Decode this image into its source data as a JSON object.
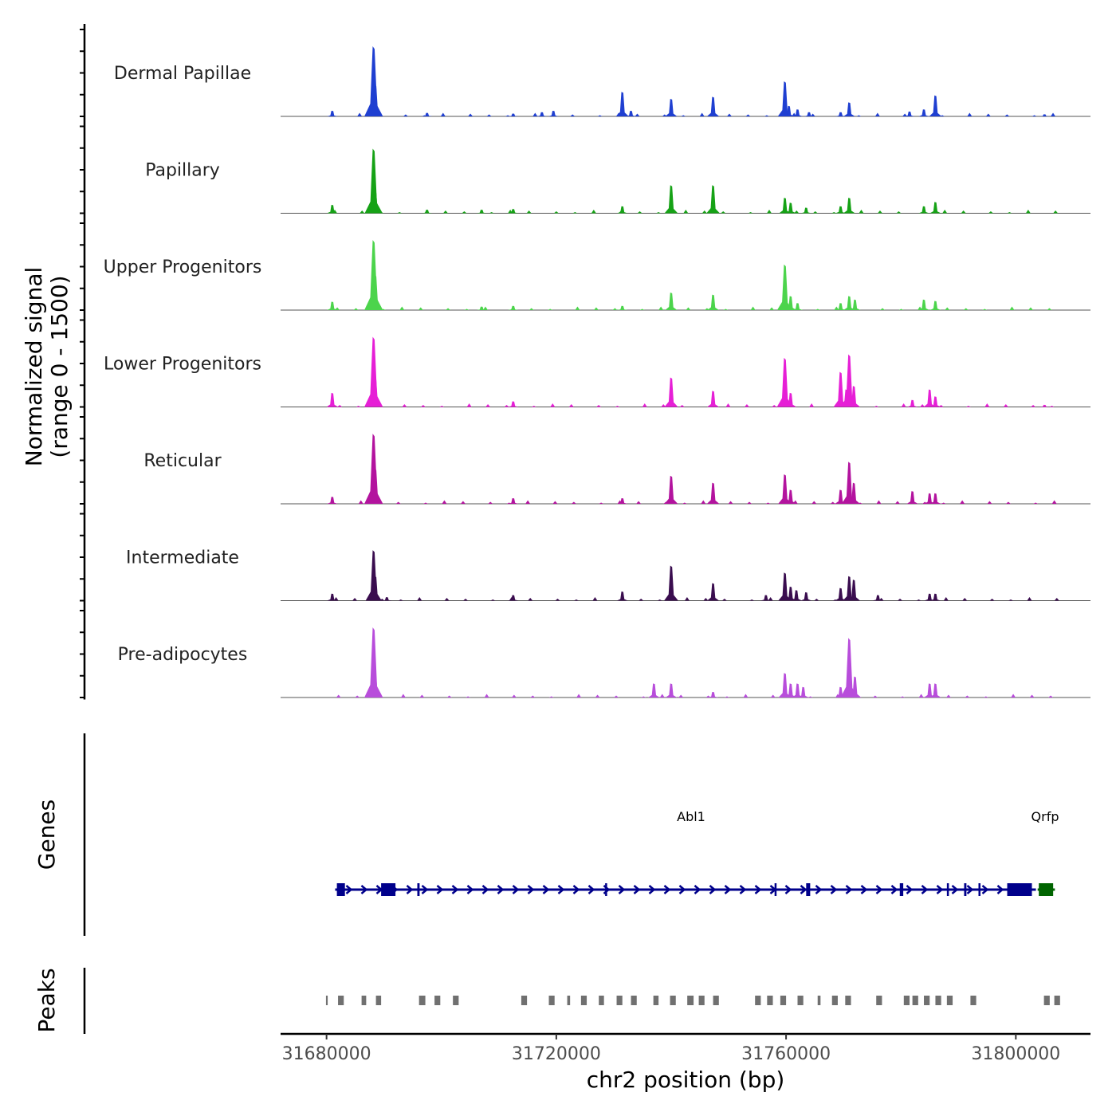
{
  "chart_data": {
    "type": "area",
    "title": "",
    "xlabel": "chr2 position (bp)",
    "ylabel_line1": "Normalized signal",
    "ylabel_line2": "(range 0 - 1500)",
    "y_range": [
      0,
      1500
    ],
    "x_range": [
      31672000,
      31813000
    ],
    "x_ticks": [
      31680000,
      31720000,
      31760000,
      31800000
    ],
    "x_tick_labels": [
      "31680000",
      "31720000",
      "31760000",
      "31800000"
    ],
    "tracks": [
      {
        "name": "Dermal Papillae",
        "color": "#1f3fd1",
        "peaks": [
          [
            31681000,
            0.08
          ],
          [
            31688200,
            1.0
          ],
          [
            31688500,
            0.45
          ],
          [
            31697500,
            0.05
          ],
          [
            31712500,
            0.04
          ],
          [
            31717500,
            0.06
          ],
          [
            31719500,
            0.08
          ],
          [
            31731500,
            0.35
          ],
          [
            31733000,
            0.08
          ],
          [
            31740000,
            0.25
          ],
          [
            31747300,
            0.28
          ],
          [
            31759800,
            0.5
          ],
          [
            31760500,
            0.15
          ],
          [
            31762000,
            0.1
          ],
          [
            31764000,
            0.06
          ],
          [
            31769500,
            0.06
          ],
          [
            31771000,
            0.2
          ],
          [
            31781500,
            0.07
          ],
          [
            31784000,
            0.1
          ],
          [
            31786000,
            0.3
          ],
          [
            31805000,
            0.03
          ]
        ]
      },
      {
        "name": "Papillary",
        "color": "#16a216",
        "peaks": [
          [
            31681000,
            0.12
          ],
          [
            31688200,
            0.92
          ],
          [
            31688500,
            0.3
          ],
          [
            31697500,
            0.05
          ],
          [
            31707000,
            0.05
          ],
          [
            31712500,
            0.06
          ],
          [
            31731500,
            0.1
          ],
          [
            31740000,
            0.4
          ],
          [
            31747300,
            0.4
          ],
          [
            31759800,
            0.22
          ],
          [
            31760800,
            0.15
          ],
          [
            31763500,
            0.08
          ],
          [
            31769500,
            0.1
          ],
          [
            31771000,
            0.22
          ],
          [
            31784000,
            0.1
          ],
          [
            31786000,
            0.16
          ]
        ]
      },
      {
        "name": "Upper Progenitors",
        "color": "#4cd44c",
        "peaks": [
          [
            31681000,
            0.12
          ],
          [
            31688200,
            1.0
          ],
          [
            31688500,
            0.5
          ],
          [
            31707000,
            0.05
          ],
          [
            31712500,
            0.06
          ],
          [
            31731500,
            0.06
          ],
          [
            31740000,
            0.25
          ],
          [
            31747300,
            0.22
          ],
          [
            31759800,
            0.65
          ],
          [
            31760800,
            0.2
          ],
          [
            31762000,
            0.1
          ],
          [
            31769500,
            0.1
          ],
          [
            31771000,
            0.2
          ],
          [
            31772000,
            0.15
          ],
          [
            31784000,
            0.15
          ],
          [
            31786000,
            0.13
          ]
        ]
      },
      {
        "name": "Lower Progenitors",
        "color": "#e61fd6",
        "peaks": [
          [
            31681000,
            0.2
          ],
          [
            31688200,
            1.0
          ],
          [
            31688500,
            0.4
          ],
          [
            31712500,
            0.08
          ],
          [
            31740000,
            0.42
          ],
          [
            31747300,
            0.23
          ],
          [
            31759800,
            0.7
          ],
          [
            31760800,
            0.2
          ],
          [
            31769500,
            0.5
          ],
          [
            31770500,
            0.25
          ],
          [
            31771000,
            0.75
          ],
          [
            31771800,
            0.3
          ],
          [
            31782000,
            0.1
          ],
          [
            31785000,
            0.25
          ],
          [
            31786000,
            0.15
          ],
          [
            31805000,
            0.03
          ]
        ]
      },
      {
        "name": "Reticular",
        "color": "#b3139e",
        "peaks": [
          [
            31681000,
            0.1
          ],
          [
            31688200,
            1.0
          ],
          [
            31688500,
            0.5
          ],
          [
            31712500,
            0.08
          ],
          [
            31731500,
            0.08
          ],
          [
            31740000,
            0.4
          ],
          [
            31747300,
            0.3
          ],
          [
            31759800,
            0.42
          ],
          [
            31760800,
            0.2
          ],
          [
            31769500,
            0.2
          ],
          [
            31771000,
            0.6
          ],
          [
            31771800,
            0.3
          ],
          [
            31782000,
            0.18
          ],
          [
            31785000,
            0.15
          ],
          [
            31786000,
            0.15
          ]
        ]
      },
      {
        "name": "Intermediate",
        "color": "#3a0d4f",
        "peaks": [
          [
            31681000,
            0.1
          ],
          [
            31688200,
            0.72
          ],
          [
            31688500,
            0.35
          ],
          [
            31690500,
            0.05
          ],
          [
            31712500,
            0.08
          ],
          [
            31731500,
            0.13
          ],
          [
            31740000,
            0.5
          ],
          [
            31747300,
            0.25
          ],
          [
            31756500,
            0.08
          ],
          [
            31759800,
            0.4
          ],
          [
            31760800,
            0.2
          ],
          [
            31761800,
            0.15
          ],
          [
            31763500,
            0.12
          ],
          [
            31769500,
            0.18
          ],
          [
            31771000,
            0.35
          ],
          [
            31771800,
            0.3
          ],
          [
            31776000,
            0.08
          ],
          [
            31785000,
            0.1
          ],
          [
            31786000,
            0.1
          ]
        ]
      },
      {
        "name": "Pre-adipocytes",
        "color": "#b84ddb",
        "peaks": [
          [
            31688200,
            1.0
          ],
          [
            31688500,
            0.3
          ],
          [
            31737000,
            0.2
          ],
          [
            31740000,
            0.2
          ],
          [
            31747300,
            0.08
          ],
          [
            31759800,
            0.35
          ],
          [
            31760800,
            0.2
          ],
          [
            31762000,
            0.2
          ],
          [
            31763000,
            0.15
          ],
          [
            31769500,
            0.15
          ],
          [
            31771000,
            0.85
          ],
          [
            31772000,
            0.3
          ],
          [
            31785000,
            0.2
          ],
          [
            31786000,
            0.2
          ]
        ]
      }
    ],
    "genes": {
      "title": "Genes",
      "items": [
        {
          "name": "Abl1",
          "start": 31681500,
          "end": 31803500,
          "strand": "+",
          "color": "#00008b",
          "exons": [
            [
              31681800,
              31683200
            ],
            [
              31689500,
              31692000
            ],
            [
              31695800,
              31696200
            ],
            [
              31728500,
              31728800
            ],
            [
              31758000,
              31758300
            ],
            [
              31763500,
              31764200
            ],
            [
              31779800,
              31780400
            ],
            [
              31788000,
              31788300
            ],
            [
              31791000,
              31791400
            ],
            [
              31793500,
              31793800
            ],
            [
              31798500,
              31802800
            ]
          ]
        },
        {
          "name": "Qrfp",
          "start": 31803800,
          "end": 31806800,
          "strand": "-",
          "color": "#006400",
          "exons": [
            [
              31804000,
              31806500
            ]
          ]
        }
      ]
    },
    "peaks_track": {
      "title": "Peaks",
      "color": "#707070",
      "regions": [
        [
          31679900,
          31680200
        ],
        [
          31682000,
          31683000
        ],
        [
          31686100,
          31686900
        ],
        [
          31688600,
          31689500
        ],
        [
          31696100,
          31697200
        ],
        [
          31698800,
          31699800
        ],
        [
          31702000,
          31703000
        ],
        [
          31713900,
          31714900
        ],
        [
          31718700,
          31719700
        ],
        [
          31721900,
          31722400
        ],
        [
          31724300,
          31725300
        ],
        [
          31727400,
          31728300
        ],
        [
          31730500,
          31731500
        ],
        [
          31733000,
          31734000
        ],
        [
          31736900,
          31737800
        ],
        [
          31739800,
          31740800
        ],
        [
          31742800,
          31743900
        ],
        [
          31744800,
          31745800
        ],
        [
          31747300,
          31748300
        ],
        [
          31754600,
          31755600
        ],
        [
          31756700,
          31757700
        ],
        [
          31759000,
          31760000
        ],
        [
          31762000,
          31763000
        ],
        [
          31765500,
          31766000
        ],
        [
          31768000,
          31769000
        ],
        [
          31770300,
          31771300
        ],
        [
          31775700,
          31776700
        ],
        [
          31780500,
          31781500
        ],
        [
          31782000,
          31783000
        ],
        [
          31784000,
          31785000
        ],
        [
          31786000,
          31787000
        ],
        [
          31788000,
          31789000
        ],
        [
          31792100,
          31793100
        ],
        [
          31804900,
          31805900
        ],
        [
          31806700,
          31807700
        ]
      ]
    }
  }
}
